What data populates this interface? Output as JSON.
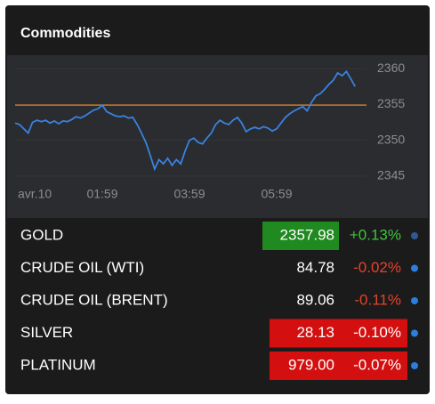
{
  "header": {
    "title": "Commodities"
  },
  "chart_data": {
    "type": "line",
    "categories": [
      "avr.10",
      null,
      null,
      null,
      null,
      null,
      null,
      null,
      null,
      null,
      null,
      null,
      null,
      null,
      null,
      null,
      null,
      null,
      null,
      null,
      "01:59",
      null,
      null,
      null,
      null,
      null,
      null,
      null,
      null,
      null,
      null,
      null,
      null,
      null,
      null,
      null,
      null,
      null,
      null,
      null,
      "03:59",
      null,
      null,
      null,
      null,
      null,
      null,
      null,
      null,
      null,
      null,
      null,
      null,
      null,
      null,
      null,
      null,
      null,
      null,
      null,
      "05:59",
      null,
      null,
      null,
      null,
      null,
      null,
      null,
      null,
      null,
      null,
      null,
      null,
      null,
      null,
      null,
      null,
      null,
      null
    ],
    "values": [
      2352.4,
      2352.2,
      2351.6,
      2351.0,
      2352.5,
      2352.8,
      2352.6,
      2352.8,
      2352.4,
      2352.7,
      2352.3,
      2352.7,
      2352.6,
      2352.9,
      2353.3,
      2353.1,
      2353.4,
      2353.8,
      2354.2,
      2354.4,
      2354.9,
      2354.0,
      2353.7,
      2353.4,
      2353.3,
      2353.4,
      2353.1,
      2353.2,
      2352.2,
      2351.0,
      2349.7,
      2347.9,
      2346.0,
      2347.3,
      2346.7,
      2347.5,
      2346.5,
      2347.3,
      2346.7,
      2348.5,
      2350.0,
      2350.3,
      2349.7,
      2349.5,
      2350.3,
      2351.0,
      2352.2,
      2352.8,
      2352.4,
      2352.2,
      2352.8,
      2353.2,
      2352.4,
      2351.2,
      2351.6,
      2351.8,
      2351.6,
      2351.9,
      2351.7,
      2351.3,
      2351.6,
      2352.4,
      2353.2,
      2353.7,
      2354.1,
      2354.4,
      2354.7,
      2354.1,
      2355.3,
      2356.2,
      2356.5,
      2357.1,
      2357.8,
      2358.4,
      2359.4,
      2359.0,
      2359.6,
      2358.6,
      2357.5
    ],
    "color": "#3a82e0",
    "ylim": [
      2343.5,
      2361.5
    ],
    "yticks": [
      2345,
      2350,
      2355,
      2360
    ],
    "reference_line": {
      "value": 2354.9,
      "color": "#c8782a"
    }
  },
  "table": {
    "rows": [
      {
        "name": "GOLD",
        "price": "2357.98",
        "change": "+0.13%",
        "price_bg": "#1f8a1f",
        "change_bg": null,
        "change_color": "#3ec43e",
        "dot": "#2d5a93"
      },
      {
        "name": "CRUDE OIL (WTI)",
        "price": "84.78",
        "change": "-0.02%",
        "price_bg": null,
        "change_bg": null,
        "change_color": "#e8412c",
        "dot": "#2b7de0"
      },
      {
        "name": "CRUDE OIL (BRENT)",
        "price": "89.06",
        "change": "-0.11%",
        "price_bg": null,
        "change_bg": null,
        "change_color": "#e8412c",
        "dot": "#2b7de0"
      },
      {
        "name": "SILVER",
        "price": "28.13",
        "change": "-0.10%",
        "price_bg": "#d40f0f",
        "change_bg": "#d40f0f",
        "change_color": "#ffffff",
        "dot": "#2b7de0"
      },
      {
        "name": "PLATINUM",
        "price": "979.00",
        "change": "-0.07%",
        "price_bg": "#d40f0f",
        "change_bg": "#d40f0f",
        "change_color": "#ffffff",
        "dot": "#2b7de0"
      }
    ]
  }
}
